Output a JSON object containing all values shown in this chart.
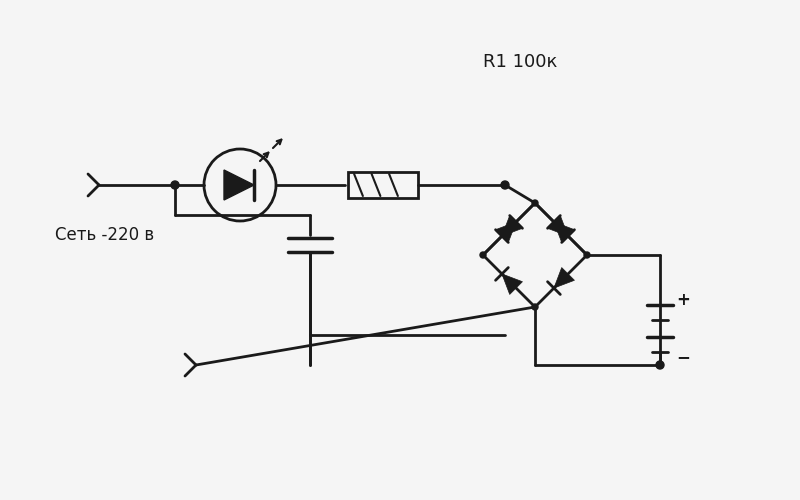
{
  "bg_color": "#f5f5f5",
  "line_color": "#1a1a1a",
  "line_width": 2.0,
  "title_text": "R1 100к",
  "label_text": "Сеть -220 в",
  "title_fontsize": 13,
  "label_fontsize": 12,
  "figsize": [
    8.0,
    5.0
  ],
  "dpi": 100
}
